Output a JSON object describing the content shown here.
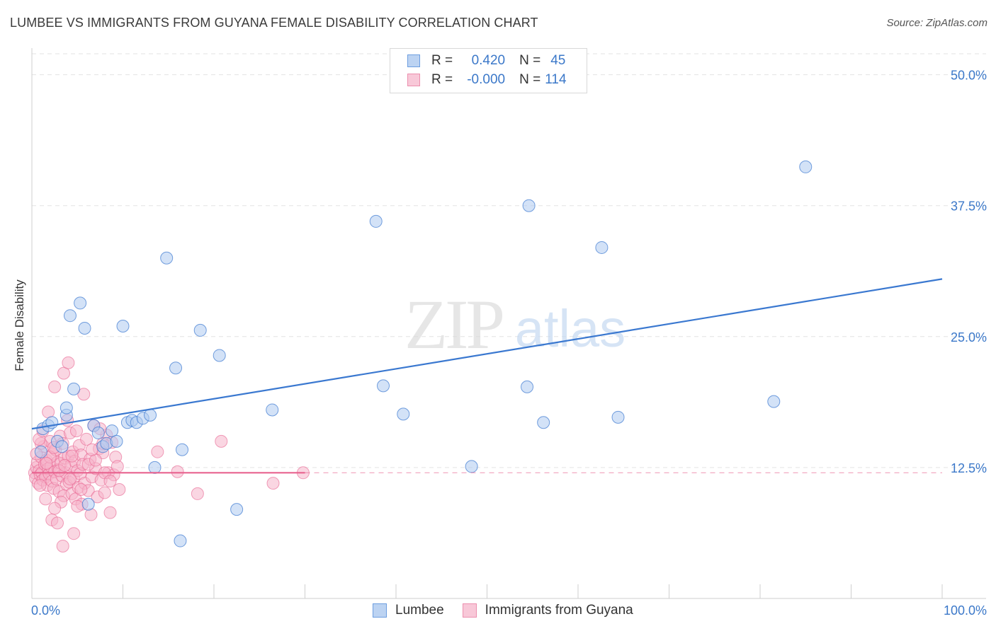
{
  "title": "LUMBEE VS IMMIGRANTS FROM GUYANA FEMALE DISABILITY CORRELATION CHART",
  "source": "Source: ZipAtlas.com",
  "watermark": {
    "zip": "ZIP",
    "atlas": "atlas"
  },
  "legend_stats": [
    {
      "r_label": "R =",
      "r_value": "0.420",
      "n_label": "N =",
      "n_value": "45"
    },
    {
      "r_label": "R =",
      "r_value": "-0.000",
      "n_label": "N =",
      "n_value": "114"
    }
  ],
  "colors": {
    "blue": "#3a78d0",
    "blue_fill": "#aecbf0",
    "pink": "#e8638f",
    "pink_fill": "#f5b5ca",
    "grid": "#e3e3e3",
    "tick_label": "#3b78c9"
  },
  "chart_data": {
    "type": "scatter",
    "title": "LUMBEE VS IMMIGRANTS FROM GUYANA FEMALE DISABILITY CORRELATION CHART",
    "xlabel": "",
    "ylabel": "Female Disability",
    "xlim": [
      0,
      100
    ],
    "ylim": [
      0,
      52
    ],
    "x_tick_labels": [
      "0.0%",
      "100.0%"
    ],
    "y_ticks": [
      12.5,
      25.0,
      37.5,
      50.0
    ],
    "y_tick_labels": [
      "12.5%",
      "25.0%",
      "37.5%",
      "50.0%"
    ],
    "legend_position": "bottom-center",
    "series": [
      {
        "name": "Lumbee",
        "color": "#3a78d0",
        "trendline": {
          "x": [
            0,
            100
          ],
          "y": [
            16.2,
            30.5
          ]
        },
        "points": [
          [
            1.0,
            14.0
          ],
          [
            1.2,
            16.2
          ],
          [
            1.8,
            16.5
          ],
          [
            2.2,
            16.8
          ],
          [
            2.8,
            15.0
          ],
          [
            3.3,
            14.5
          ],
          [
            3.8,
            17.5
          ],
          [
            3.8,
            18.2
          ],
          [
            4.2,
            27.0
          ],
          [
            4.6,
            20.0
          ],
          [
            5.3,
            28.2
          ],
          [
            5.8,
            25.8
          ],
          [
            6.2,
            9.0
          ],
          [
            6.8,
            16.5
          ],
          [
            7.3,
            15.8
          ],
          [
            7.8,
            14.5
          ],
          [
            8.2,
            14.8
          ],
          [
            8.8,
            16.0
          ],
          [
            9.3,
            15.0
          ],
          [
            10.0,
            26.0
          ],
          [
            10.5,
            16.8
          ],
          [
            11.0,
            17.0
          ],
          [
            11.5,
            16.8
          ],
          [
            12.2,
            17.2
          ],
          [
            13.0,
            17.5
          ],
          [
            13.5,
            12.5
          ],
          [
            14.8,
            32.5
          ],
          [
            15.8,
            22.0
          ],
          [
            16.3,
            5.5
          ],
          [
            16.5,
            14.2
          ],
          [
            18.5,
            25.6
          ],
          [
            20.6,
            23.2
          ],
          [
            22.5,
            8.5
          ],
          [
            26.4,
            18.0
          ],
          [
            37.8,
            36.0
          ],
          [
            38.6,
            20.3
          ],
          [
            40.8,
            17.6
          ],
          [
            48.3,
            12.6
          ],
          [
            54.4,
            20.2
          ],
          [
            54.6,
            37.5
          ],
          [
            56.2,
            16.8
          ],
          [
            62.6,
            33.5
          ],
          [
            64.4,
            17.3
          ],
          [
            81.5,
            18.8
          ],
          [
            85.0,
            41.2
          ]
        ]
      },
      {
        "name": "Immigrants from Guyana",
        "color": "#e8638f",
        "trendline": {
          "x": [
            0,
            30
          ],
          "y": [
            12.0,
            12.0
          ],
          "dashed_extension_to": 100
        },
        "points": [
          [
            0.3,
            12.0
          ],
          [
            0.4,
            11.5
          ],
          [
            0.5,
            12.5
          ],
          [
            0.6,
            13.0
          ],
          [
            0.7,
            11.0
          ],
          [
            0.8,
            12.2
          ],
          [
            0.9,
            11.8
          ],
          [
            1.0,
            13.5
          ],
          [
            1.1,
            12.0
          ],
          [
            1.2,
            11.3
          ],
          [
            1.3,
            14.5
          ],
          [
            1.4,
            12.8
          ],
          [
            1.5,
            11.6
          ],
          [
            1.6,
            13.2
          ],
          [
            1.7,
            10.8
          ],
          [
            1.8,
            12.4
          ],
          [
            1.9,
            11.9
          ],
          [
            2.0,
            15.0
          ],
          [
            2.1,
            12.6
          ],
          [
            2.2,
            11.2
          ],
          [
            2.3,
            13.8
          ],
          [
            2.4,
            10.5
          ],
          [
            2.5,
            12.1
          ],
          [
            2.6,
            14.2
          ],
          [
            2.7,
            11.4
          ],
          [
            2.8,
            13.0
          ],
          [
            2.9,
            12.3
          ],
          [
            3.0,
            10.2
          ],
          [
            3.1,
            15.5
          ],
          [
            3.2,
            12.9
          ],
          [
            3.3,
            11.7
          ],
          [
            3.4,
            14.8
          ],
          [
            3.5,
            9.8
          ],
          [
            3.6,
            13.4
          ],
          [
            3.7,
            12.0
          ],
          [
            3.8,
            10.9
          ],
          [
            3.9,
            17.0
          ],
          [
            4.0,
            13.6
          ],
          [
            4.1,
            11.1
          ],
          [
            4.2,
            15.8
          ],
          [
            4.3,
            12.7
          ],
          [
            4.4,
            10.0
          ],
          [
            4.5,
            14.0
          ],
          [
            4.6,
            11.5
          ],
          [
            4.7,
            13.1
          ],
          [
            4.8,
            9.5
          ],
          [
            4.9,
            16.0
          ],
          [
            5.0,
            12.2
          ],
          [
            5.1,
            10.6
          ],
          [
            5.2,
            14.6
          ],
          [
            5.3,
            11.9
          ],
          [
            5.4,
            13.7
          ],
          [
            5.5,
            9.0
          ],
          [
            5.6,
            12.8
          ],
          [
            5.7,
            19.5
          ],
          [
            5.8,
            11.0
          ],
          [
            6.0,
            15.2
          ],
          [
            6.2,
            10.3
          ],
          [
            6.4,
            13.3
          ],
          [
            6.6,
            11.6
          ],
          [
            6.8,
            16.5
          ],
          [
            7.0,
            12.4
          ],
          [
            7.2,
            9.7
          ],
          [
            7.4,
            14.3
          ],
          [
            7.6,
            11.3
          ],
          [
            7.8,
            13.9
          ],
          [
            8.0,
            10.1
          ],
          [
            8.2,
            15.6
          ],
          [
            8.4,
            12.0
          ],
          [
            8.6,
            8.2
          ],
          [
            8.8,
            14.9
          ],
          [
            9.0,
            11.8
          ],
          [
            9.2,
            13.5
          ],
          [
            9.4,
            12.6
          ],
          [
            2.5,
            20.2
          ],
          [
            3.5,
            21.5
          ],
          [
            4.0,
            22.5
          ],
          [
            1.8,
            17.8
          ],
          [
            2.2,
            7.5
          ],
          [
            3.4,
            5.0
          ],
          [
            4.6,
            6.2
          ],
          [
            2.8,
            7.2
          ],
          [
            5.0,
            8.8
          ],
          [
            3.2,
            9.2
          ],
          [
            6.5,
            8.0
          ],
          [
            7.5,
            16.2
          ],
          [
            8.0,
            12.0
          ],
          [
            1.0,
            14.8
          ],
          [
            2.0,
            13.5
          ],
          [
            3.0,
            12.2
          ],
          [
            4.2,
            11.4
          ],
          [
            5.4,
            10.4
          ],
          [
            6.2,
            12.8
          ],
          [
            7.0,
            13.2
          ],
          [
            1.5,
            9.5
          ],
          [
            2.5,
            8.6
          ],
          [
            0.8,
            15.2
          ],
          [
            1.2,
            16.0
          ],
          [
            0.5,
            13.8
          ],
          [
            0.9,
            10.8
          ],
          [
            1.6,
            12.9
          ],
          [
            2.4,
            14.4
          ],
          [
            3.6,
            12.7
          ],
          [
            4.4,
            13.6
          ],
          [
            13.8,
            14.0
          ],
          [
            16.0,
            12.1
          ],
          [
            18.2,
            10.0
          ],
          [
            20.8,
            15.0
          ],
          [
            26.5,
            11.0
          ],
          [
            29.8,
            12.0
          ],
          [
            7.8,
            14.8
          ],
          [
            8.6,
            11.2
          ],
          [
            9.6,
            10.4
          ],
          [
            6.6,
            14.2
          ]
        ]
      }
    ]
  }
}
